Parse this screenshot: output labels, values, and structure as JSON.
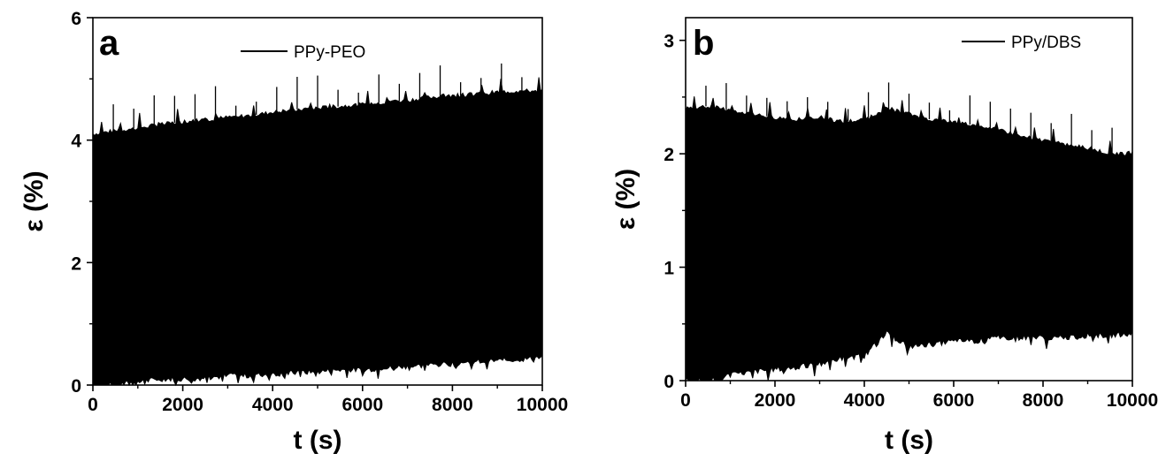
{
  "chart_data": [
    {
      "type": "area",
      "panel_label": "a",
      "xlabel": "t (s)",
      "ylabel": "ε (%)",
      "xlim": [
        0,
        10000
      ],
      "ylim": [
        0,
        6
      ],
      "xticks": [
        "0",
        "2000",
        "4000",
        "6000",
        "8000",
        "10000"
      ],
      "yticks": [
        "0",
        "2",
        "4",
        "6"
      ],
      "series": [
        {
          "name": "PPy-PEO",
          "color": "#000000",
          "x": [
            0,
            500,
            1000,
            1500,
            2000,
            2500,
            3000,
            3500,
            4000,
            4500,
            5000,
            5500,
            6000,
            6500,
            7000,
            7500,
            8000,
            8500,
            9000,
            9500,
            10000
          ],
          "upper": [
            4.1,
            4.15,
            4.2,
            4.25,
            4.3,
            4.33,
            4.37,
            4.4,
            4.45,
            4.5,
            4.52,
            4.55,
            4.58,
            4.62,
            4.65,
            4.7,
            4.72,
            4.75,
            4.78,
            4.8,
            4.8
          ],
          "lower": [
            0.0,
            0.0,
            0.05,
            0.1,
            0.1,
            0.12,
            0.15,
            0.15,
            0.18,
            0.2,
            0.22,
            0.25,
            0.25,
            0.28,
            0.3,
            0.33,
            0.35,
            0.38,
            0.4,
            0.42,
            0.45
          ]
        }
      ]
    },
    {
      "type": "area",
      "panel_label": "b",
      "xlabel": "t (s)",
      "ylabel": "ε (%)",
      "xlim": [
        0,
        10000
      ],
      "ylim": [
        0,
        3.2
      ],
      "xticks": [
        "0",
        "2000",
        "4000",
        "6000",
        "8000",
        "10000"
      ],
      "yticks": [
        "0",
        "1",
        "2",
        "3"
      ],
      "series": [
        {
          "name": "PPy/DBS",
          "color": "#000000",
          "x": [
            0,
            500,
            1000,
            1500,
            2000,
            2500,
            3000,
            3500,
            4000,
            4500,
            5000,
            5500,
            6000,
            6500,
            7000,
            7500,
            8000,
            8500,
            9000,
            9500,
            10000
          ],
          "upper": [
            2.4,
            2.42,
            2.38,
            2.35,
            2.32,
            2.3,
            2.32,
            2.28,
            2.3,
            2.4,
            2.35,
            2.3,
            2.28,
            2.25,
            2.22,
            2.15,
            2.12,
            2.08,
            2.05,
            2.0,
            2.0
          ],
          "lower": [
            0.0,
            0.0,
            0.05,
            0.08,
            0.1,
            0.12,
            0.15,
            0.2,
            0.22,
            0.42,
            0.3,
            0.32,
            0.35,
            0.35,
            0.38,
            0.38,
            0.38,
            0.38,
            0.4,
            0.4,
            0.42
          ]
        }
      ]
    }
  ]
}
